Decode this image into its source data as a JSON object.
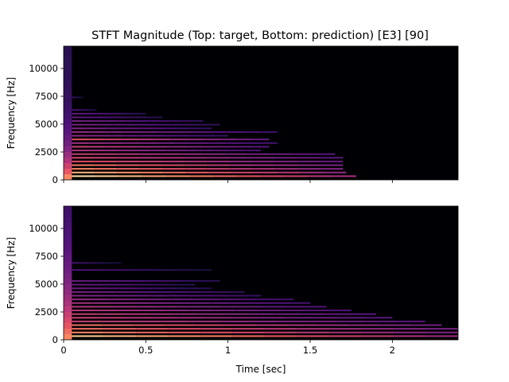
{
  "chart_data": [
    {
      "type": "heatmap",
      "title": "STFT Magnitude (Top: target, Bottom: prediction) [E3] [90]",
      "ylabel": "Frequency [Hz]",
      "xlabel": "",
      "xlim": [
        0,
        2.4
      ],
      "ylim": [
        0,
        12000
      ],
      "x_ticks": [
        0,
        0.5,
        1,
        1.5,
        2
      ],
      "x_tick_labels": [
        "",
        "",
        "",
        "",
        ""
      ],
      "y_ticks": [
        0,
        2500,
        5000,
        7500,
        10000
      ],
      "y_tick_labels": [
        "0",
        "2500",
        "5000",
        "7500",
        "10000"
      ],
      "colormap": "magma",
      "background": "#000004",
      "harmonics": [
        {
          "f": 330,
          "end": 1.78,
          "mag": 0.95
        },
        {
          "f": 660,
          "end": 1.72,
          "mag": 0.85
        },
        {
          "f": 990,
          "end": 1.7,
          "mag": 0.75
        },
        {
          "f": 1320,
          "end": 1.7,
          "mag": 0.72
        },
        {
          "f": 1650,
          "end": 1.7,
          "mag": 0.62
        },
        {
          "f": 1980,
          "end": 1.7,
          "mag": 0.58
        },
        {
          "f": 2310,
          "end": 1.65,
          "mag": 0.55
        },
        {
          "f": 2640,
          "end": 1.2,
          "mag": 0.48
        },
        {
          "f": 2970,
          "end": 1.25,
          "mag": 0.55
        },
        {
          "f": 3300,
          "end": 1.3,
          "mag": 0.45
        },
        {
          "f": 3630,
          "end": 1.25,
          "mag": 0.62
        },
        {
          "f": 3960,
          "end": 1.0,
          "mag": 0.4
        },
        {
          "f": 4290,
          "end": 1.3,
          "mag": 0.42
        },
        {
          "f": 4620,
          "end": 0.9,
          "mag": 0.38
        },
        {
          "f": 4950,
          "end": 0.95,
          "mag": 0.35
        },
        {
          "f": 5280,
          "end": 0.85,
          "mag": 0.35
        },
        {
          "f": 5610,
          "end": 0.6,
          "mag": 0.3
        },
        {
          "f": 5940,
          "end": 0.5,
          "mag": 0.3
        },
        {
          "f": 6270,
          "end": 0.2,
          "mag": 0.25
        },
        {
          "f": 7400,
          "end": 0.12,
          "mag": 0.2
        }
      ],
      "onset_bright_until": 0.05
    },
    {
      "type": "heatmap",
      "title": "",
      "ylabel": "Frequency [Hz]",
      "xlabel": "Time [sec]",
      "xlim": [
        0,
        2.4
      ],
      "ylim": [
        0,
        12000
      ],
      "x_ticks": [
        0,
        0.5,
        1,
        1.5,
        2
      ],
      "x_tick_labels": [
        "0",
        "0.5",
        "1",
        "1.5",
        "2"
      ],
      "y_ticks": [
        0,
        2500,
        5000,
        7500,
        10000
      ],
      "y_tick_labels": [
        "0",
        "2500",
        "5000",
        "7500",
        "10000"
      ],
      "colormap": "magma",
      "background": "#000004",
      "harmonics": [
        {
          "f": 330,
          "end": 2.4,
          "mag": 0.9
        },
        {
          "f": 660,
          "end": 2.4,
          "mag": 0.75
        },
        {
          "f": 990,
          "end": 2.4,
          "mag": 0.7
        },
        {
          "f": 1320,
          "end": 2.3,
          "mag": 0.7
        },
        {
          "f": 1650,
          "end": 2.2,
          "mag": 0.55
        },
        {
          "f": 1980,
          "end": 2.0,
          "mag": 0.55
        },
        {
          "f": 2310,
          "end": 1.9,
          "mag": 0.55
        },
        {
          "f": 2640,
          "end": 1.75,
          "mag": 0.5
        },
        {
          "f": 2970,
          "end": 1.6,
          "mag": 0.5
        },
        {
          "f": 3300,
          "end": 1.5,
          "mag": 0.45
        },
        {
          "f": 3630,
          "end": 1.4,
          "mag": 0.42
        },
        {
          "f": 3960,
          "end": 1.2,
          "mag": 0.38
        },
        {
          "f": 4290,
          "end": 1.1,
          "mag": 0.35
        },
        {
          "f": 4620,
          "end": 0.9,
          "mag": 0.32
        },
        {
          "f": 4950,
          "end": 0.8,
          "mag": 0.3
        },
        {
          "f": 5280,
          "end": 0.95,
          "mag": 0.32
        },
        {
          "f": 6270,
          "end": 0.9,
          "mag": 0.25
        },
        {
          "f": 6900,
          "end": 0.35,
          "mag": 0.22
        }
      ],
      "onset_bright_until": 0.05
    }
  ]
}
